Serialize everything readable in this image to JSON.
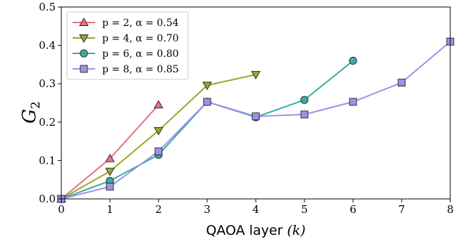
{
  "chart_data": {
    "type": "line",
    "xlabel": "QAOA layer (k)",
    "xlabel_text": "QAOA layer ",
    "xlabel_var": "(k)",
    "ylabel_main": "G",
    "ylabel_sub": "2",
    "xlim": [
      0,
      8
    ],
    "ylim": [
      0,
      0.5
    ],
    "xticks": [
      "0",
      "1",
      "2",
      "3",
      "4",
      "5",
      "6",
      "7",
      "8"
    ],
    "yticks": [
      "0.0",
      "0.1",
      "0.2",
      "0.3",
      "0.4",
      "0.5"
    ],
    "legend_position": "top-left",
    "grid": false,
    "series": [
      {
        "name": "p = 2, α = 0.54",
        "color": "#e8717f",
        "marker": "triangle-up",
        "x": [
          0,
          1,
          2
        ],
        "y": [
          0.0,
          0.105,
          0.245
        ]
      },
      {
        "name": "p = 4, α = 0.70",
        "color": "#9aa52b",
        "marker": "triangle-down",
        "x": [
          0,
          1,
          2,
          3,
          4
        ],
        "y": [
          0.0,
          0.072,
          0.178,
          0.296,
          0.324
        ]
      },
      {
        "name": "p = 6, α = 0.80",
        "color": "#3aada3",
        "marker": "circle",
        "x": [
          0,
          1,
          2,
          3,
          4,
          5,
          6
        ],
        "y": [
          0.0,
          0.047,
          0.115,
          0.253,
          0.213,
          0.258,
          0.36
        ]
      },
      {
        "name": "p = 8, α = 0.85",
        "color": "#9f90e6",
        "marker": "square",
        "x": [
          0,
          1,
          2,
          3,
          4,
          5,
          6,
          7,
          8
        ],
        "y": [
          0.0,
          0.032,
          0.124,
          0.253,
          0.215,
          0.22,
          0.253,
          0.303,
          0.41
        ]
      }
    ]
  }
}
